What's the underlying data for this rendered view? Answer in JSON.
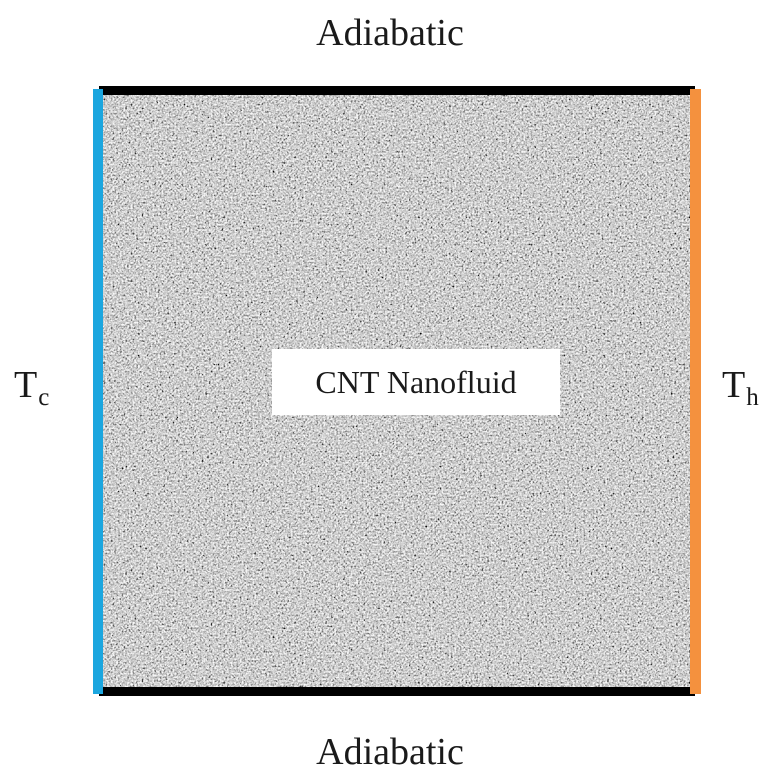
{
  "labels": {
    "top": "Adiabatic",
    "bottom": "Adiabatic",
    "left_main": "T",
    "left_sub": "c",
    "right_main": "T",
    "right_sub": "h",
    "fluid": "CNT Nanofluid"
  },
  "colors": {
    "cold_wall": "#1ba6df",
    "hot_wall": "#f4913e",
    "adiabatic_wall": "#000000",
    "fluid_base": "#9c9c9c"
  }
}
